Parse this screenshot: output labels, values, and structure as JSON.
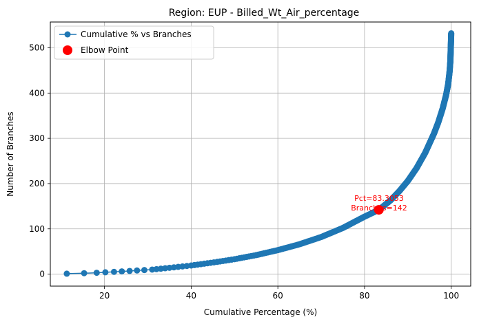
{
  "chart_data": {
    "type": "line",
    "title": "Region: EUP - Billed_Wt_Air_percentage",
    "xlabel": "Cumulative Percentage (%)",
    "ylabel": "Number of Branches",
    "xlim": [
      7.5,
      104.5
    ],
    "ylim": [
      -26.5,
      557
    ],
    "xticks": [
      20,
      40,
      60,
      80,
      100
    ],
    "yticks": [
      0,
      100,
      200,
      300,
      400,
      500
    ],
    "grid": true,
    "legend_position": "upper-left",
    "series": [
      {
        "name": "Cumulative % vs Branches",
        "color": "#1f77b4",
        "marker": "circle",
        "curve_points": [
          [
            11.3,
            1
          ],
          [
            15.3,
            2
          ],
          [
            18.2,
            3
          ],
          [
            20.2,
            4
          ],
          [
            22.2,
            5
          ],
          [
            24,
            6
          ],
          [
            25.8,
            7
          ],
          [
            27.5,
            8
          ],
          [
            29.2,
            9
          ],
          [
            31,
            10
          ],
          [
            33,
            12
          ],
          [
            35,
            14
          ],
          [
            37,
            16
          ],
          [
            40,
            19
          ],
          [
            43,
            23
          ],
          [
            46,
            27
          ],
          [
            50,
            33
          ],
          [
            55,
            42
          ],
          [
            60,
            53
          ],
          [
            65,
            66
          ],
          [
            70,
            82
          ],
          [
            75,
            102
          ],
          [
            80,
            127
          ],
          [
            83.3,
            142
          ],
          [
            86,
            163
          ],
          [
            88,
            183
          ],
          [
            90,
            206
          ],
          [
            92,
            234
          ],
          [
            94,
            268
          ],
          [
            96,
            310
          ],
          [
            97,
            335
          ],
          [
            98,
            365
          ],
          [
            98.8,
            395
          ],
          [
            99.3,
            420
          ],
          [
            99.6,
            445
          ],
          [
            99.8,
            470
          ],
          [
            99.9,
            500
          ],
          [
            100,
            532
          ]
        ]
      },
      {
        "name": "Elbow Point",
        "color": "#ff0000",
        "points": [
          [
            83.3053,
            142
          ]
        ]
      }
    ],
    "annotations": [
      {
        "line1": "Pct=83.3053",
        "line2": "Branches=142",
        "x": 83.3053,
        "y": 142
      }
    ]
  }
}
